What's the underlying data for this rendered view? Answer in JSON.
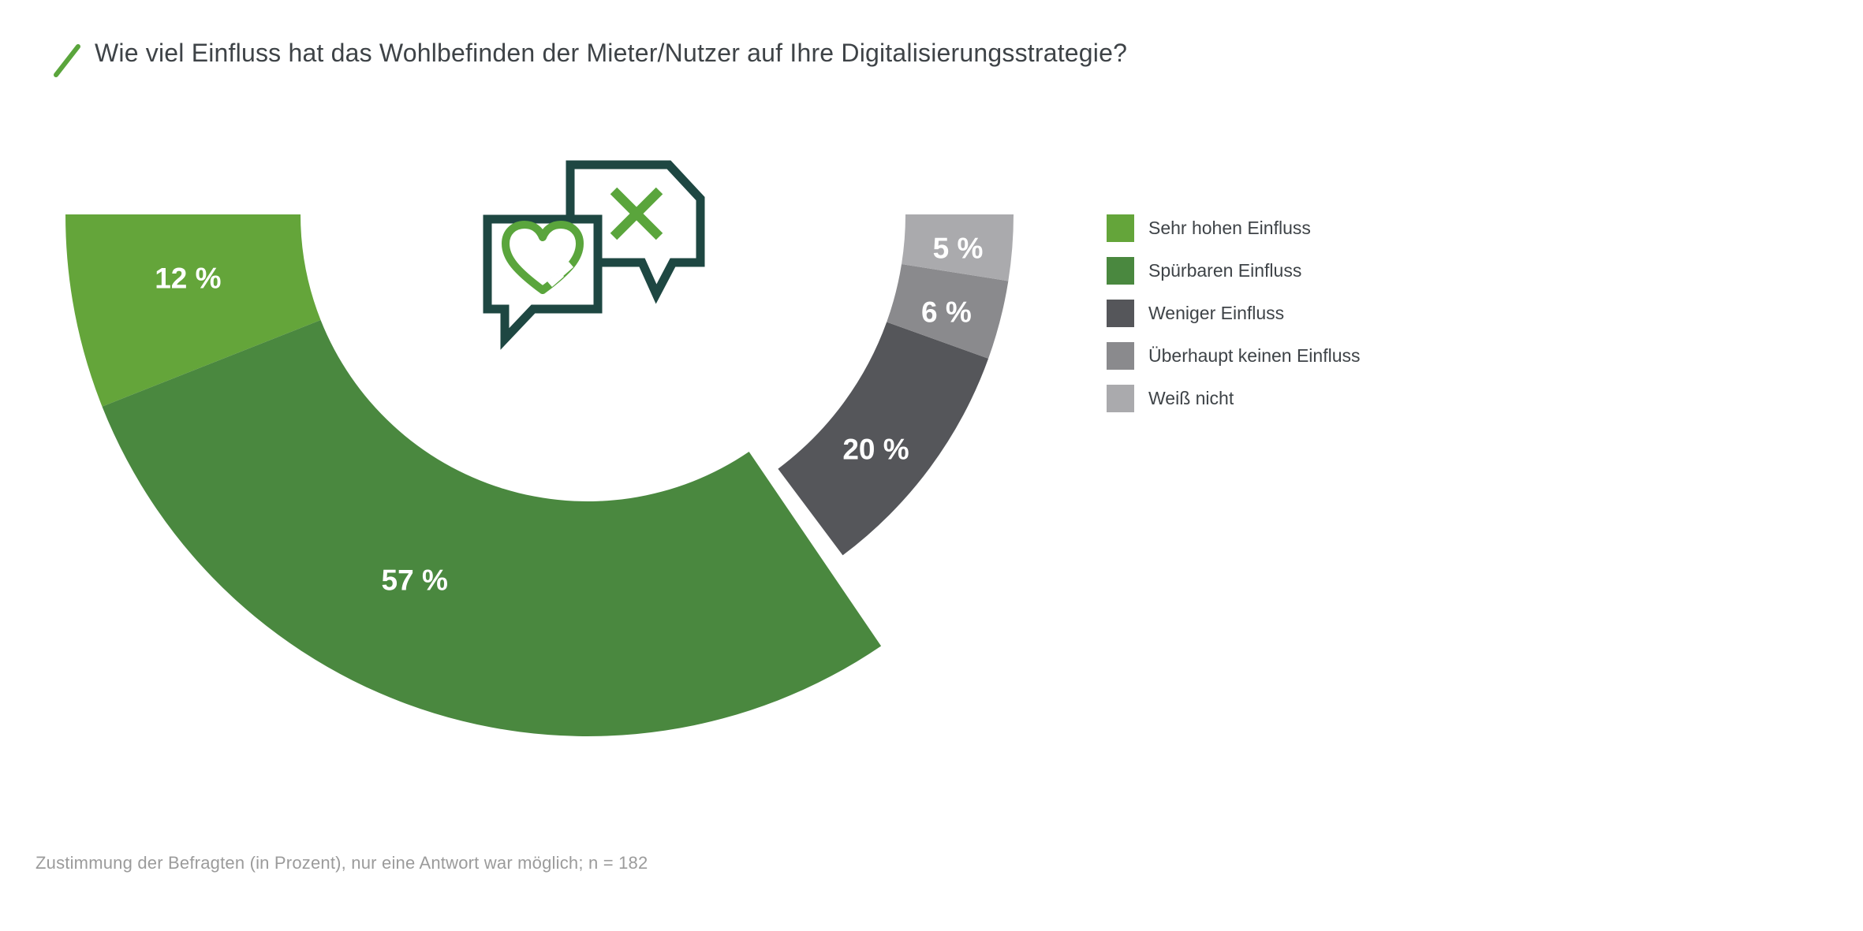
{
  "header": {
    "title": "Wie viel Einfluss hat das Wohlbefinden der Mieter/Nutzer auf Ihre Digitalisierungsstrategie?"
  },
  "chart_data": {
    "type": "pie",
    "variant": "semicircle-donut",
    "unit": "%",
    "total": 100,
    "title": "Wie viel Einfluss hat das Wohlbefinden der Mieter/Nutzer auf Ihre Digitalisierungsstrategie?",
    "segments": [
      {
        "label": "Sehr hohen Einfluss",
        "value": 12,
        "color": "#64a53a",
        "band": "wide"
      },
      {
        "label": "Spürbaren Einfluss",
        "value": 57,
        "color": "#4a883f",
        "band": "wide"
      },
      {
        "label": "Weniger Einfluss",
        "value": 20,
        "color": "#55565a",
        "band": "narrow"
      },
      {
        "label": "Überhaupt keinen Einfluss",
        "value": 6,
        "color": "#8a8a8d",
        "band": "narrow"
      },
      {
        "label": "Weiß nicht",
        "value": 5,
        "color": "#aaaaad",
        "band": "narrow"
      }
    ],
    "legend_position": "right",
    "label_format": "{value} %",
    "note": "Zustimmung der Befragten (in Prozent), nur eine Antwort war möglich; n = 182",
    "n": 182
  },
  "footer": {
    "note": "Zustimmung der Befragten (in Prozent), nur eine Antwort war möglich; n = 182"
  },
  "icons": {
    "title_slash": "slash-icon",
    "center": "chat-bubbles-heart-x-icon"
  },
  "colors": {
    "title_text": "#3e4347",
    "legend_text": "#3e4347",
    "footer_text": "#9b9b9b",
    "segment_label_text": "#ffffff",
    "accent_green": "#5aa53c",
    "icon_outline_teal": "#1e4742",
    "background": "#ffffff"
  }
}
